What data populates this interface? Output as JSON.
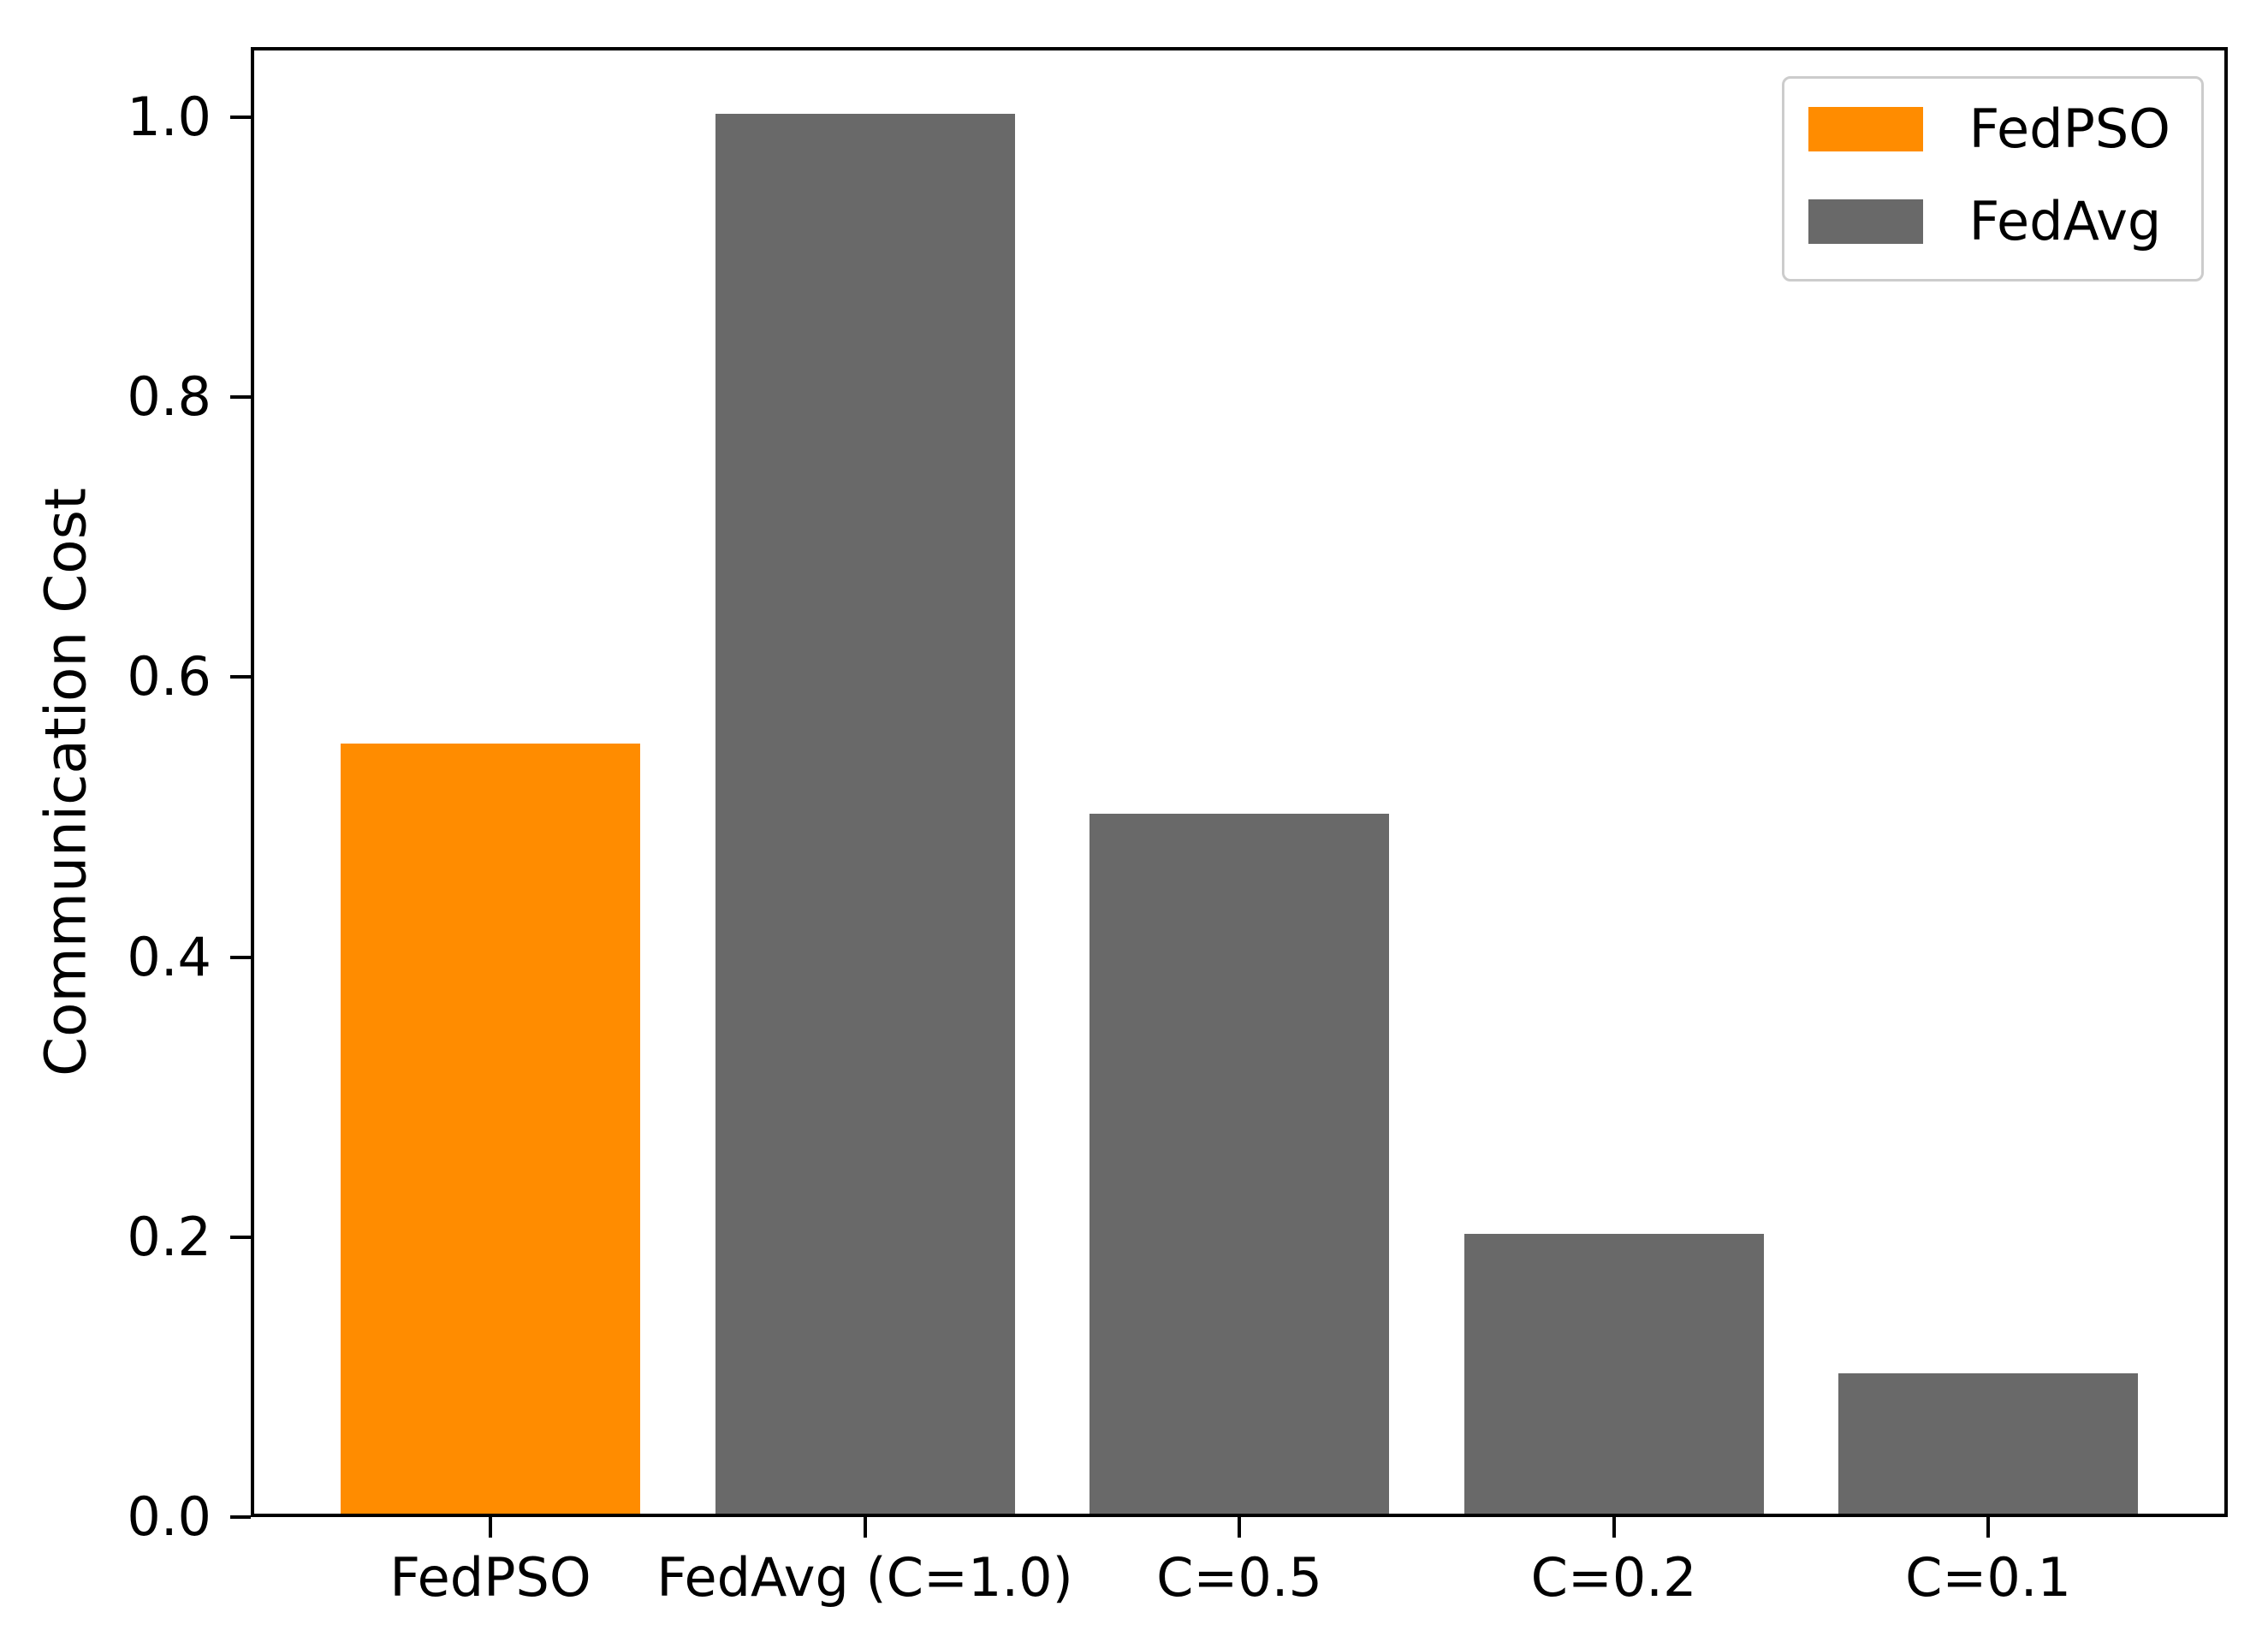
{
  "chart_data": {
    "type": "bar",
    "title": "",
    "xlabel": "",
    "ylabel": "Communication Cost",
    "categories": [
      "FedPSO",
      "FedAvg (C=1.0)",
      "C=0.5",
      "C=0.2",
      "C=0.1"
    ],
    "values": [
      0.55,
      1.0,
      0.5,
      0.2,
      0.1
    ],
    "bar_colors": [
      "#ff8c00",
      "#696969",
      "#696969",
      "#696969",
      "#696969"
    ],
    "ylim": [
      0,
      1.05
    ],
    "xlim": [
      -0.64,
      4.64
    ],
    "bar_width": 0.8,
    "yticks": [
      0.0,
      0.2,
      0.4,
      0.6,
      0.8,
      1.0
    ],
    "ytick_labels": [
      "0.0",
      "0.2",
      "0.4",
      "0.6",
      "0.8",
      "1.0"
    ],
    "grid": false,
    "legend": {
      "position": "upper right",
      "entries": [
        {
          "label": "FedPSO",
          "color": "#ff8c00"
        },
        {
          "label": "FedAvg",
          "color": "#696969"
        }
      ]
    }
  },
  "colors": {
    "accent_orange": "#ff8c00",
    "bar_gray": "#696969",
    "spine": "#000000",
    "legend_border": "#cccccc",
    "background": "#ffffff"
  }
}
